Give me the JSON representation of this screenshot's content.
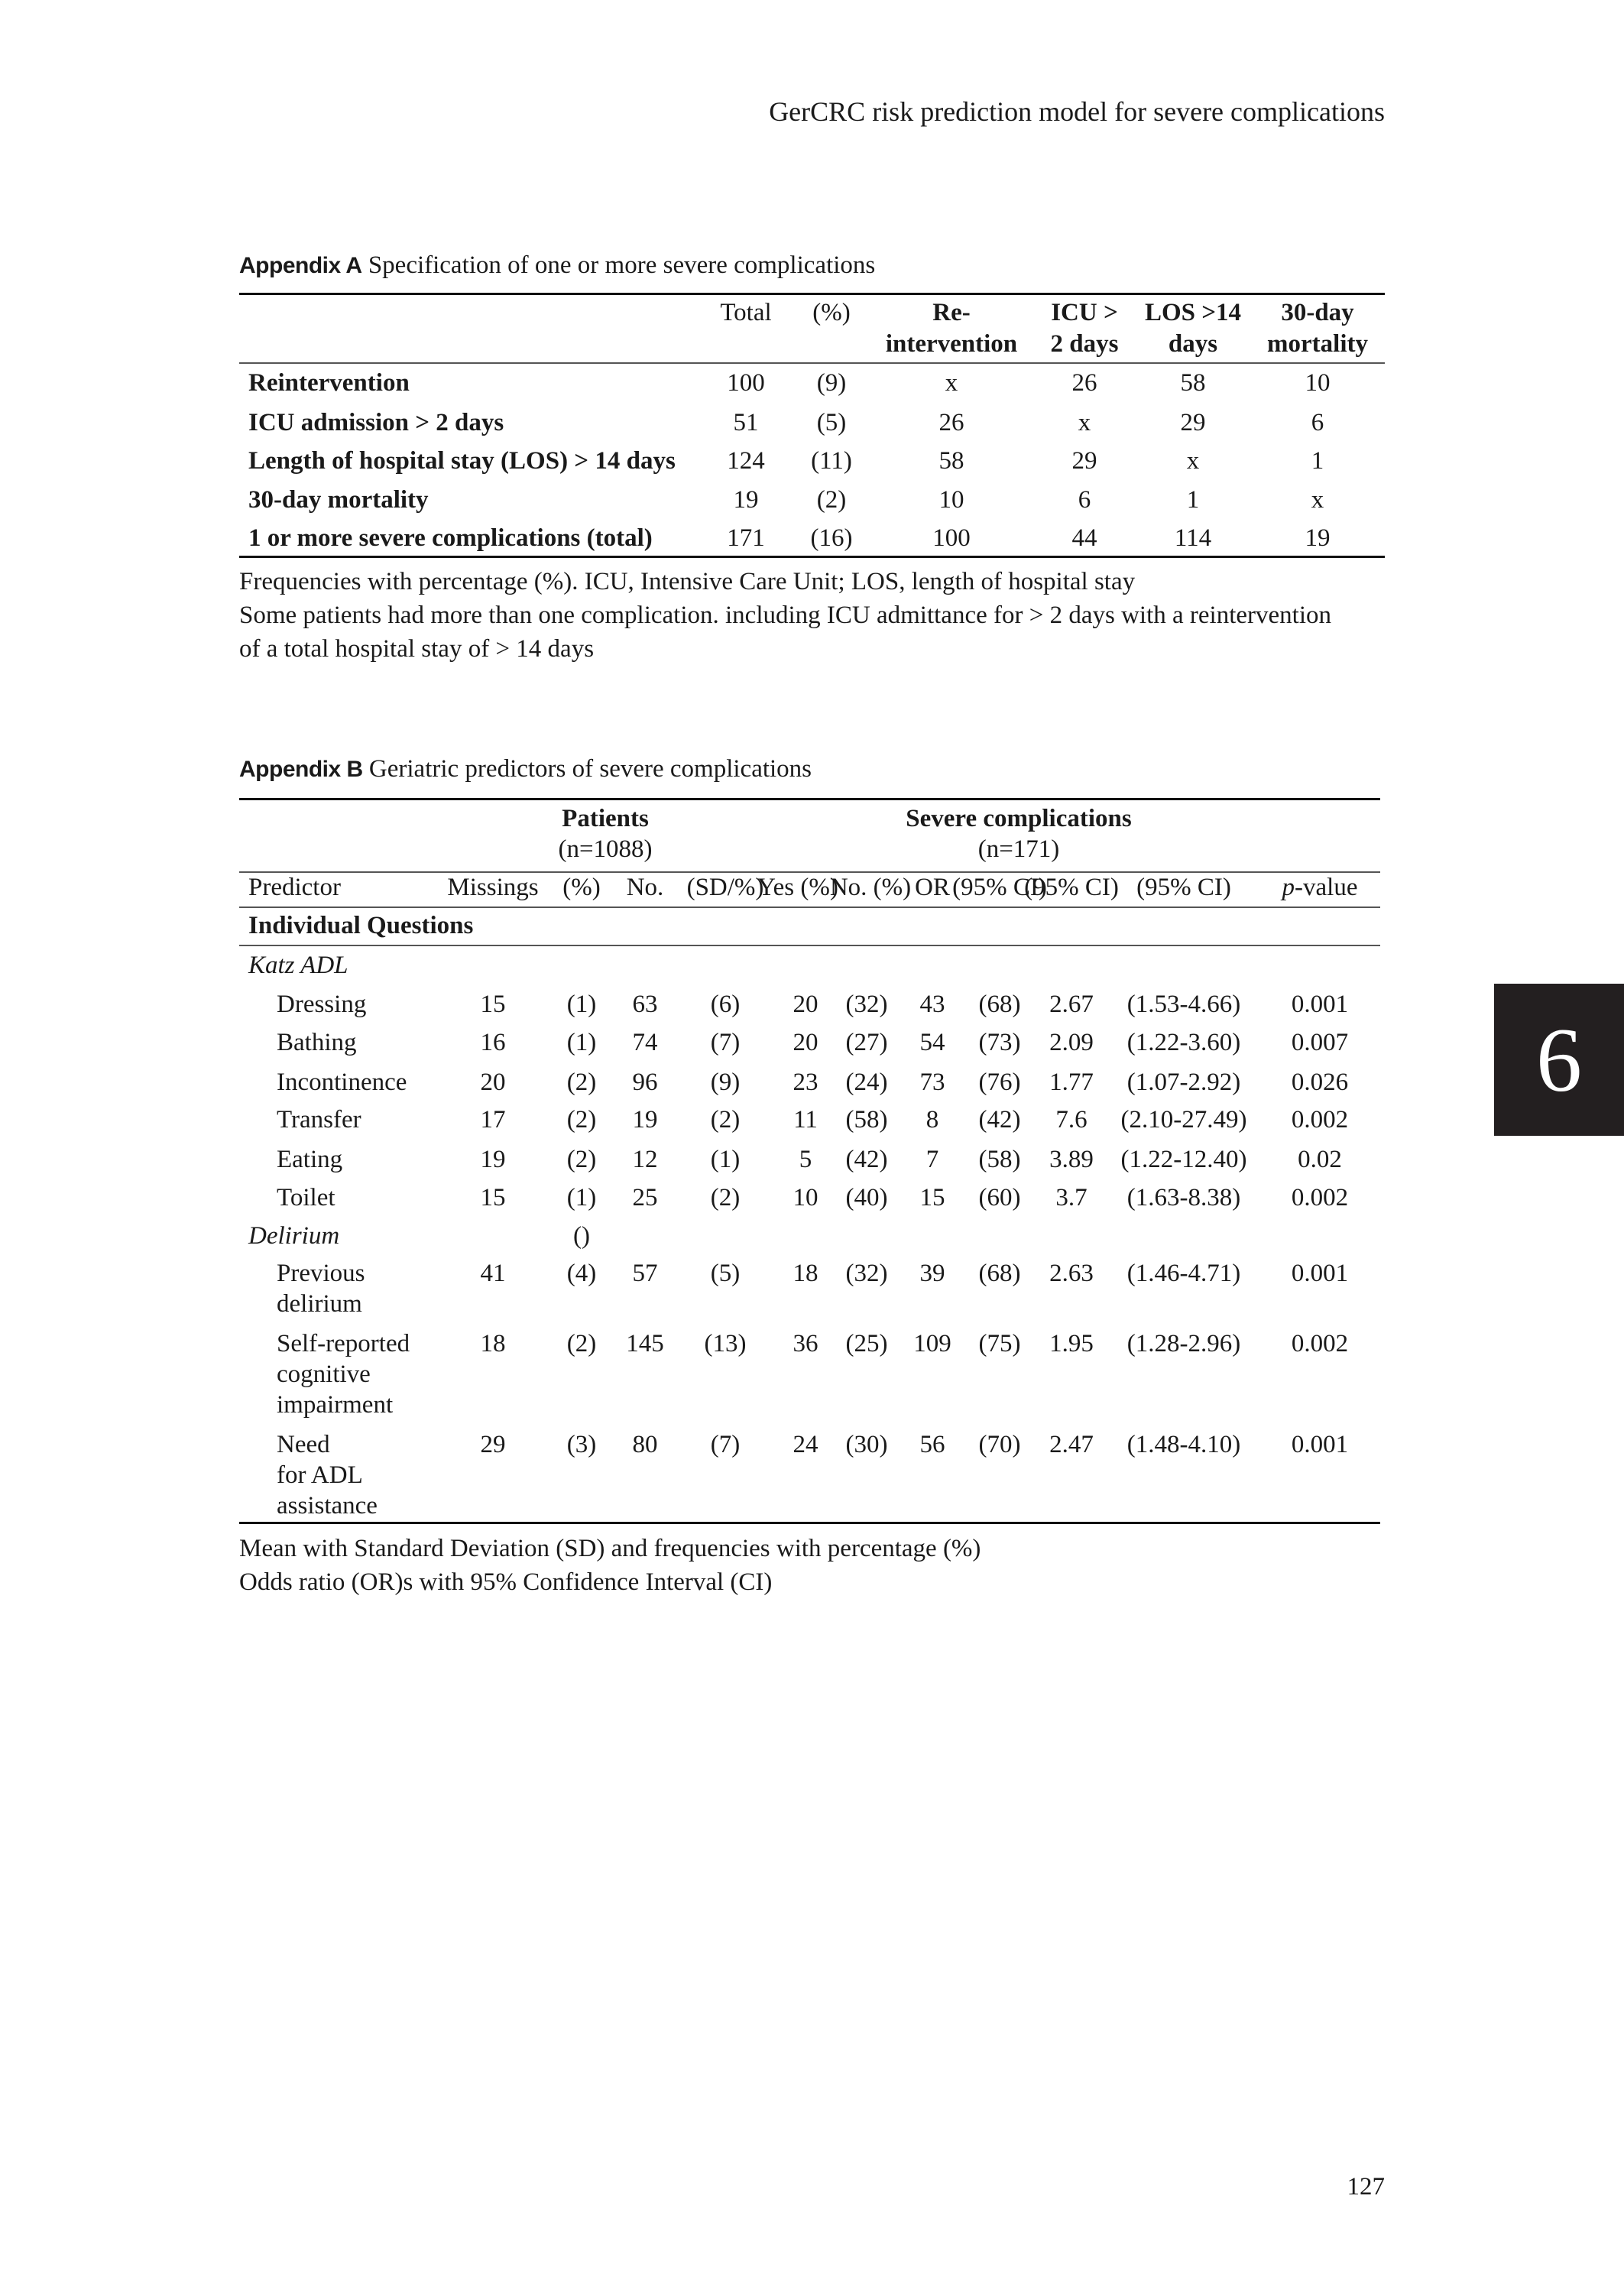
{
  "running_header": "GerCRC risk prediction model for severe complications",
  "appendix_a": {
    "label": "Appendix A",
    "title": "Specification of one or more severe complications",
    "headers": [
      [
        "Total"
      ],
      [
        "(%)"
      ],
      [
        "Re-",
        "intervention"
      ],
      [
        "ICU >",
        "2 days"
      ],
      [
        "LOS >14",
        "days"
      ],
      [
        "30-day",
        "mortality"
      ]
    ],
    "rows": [
      {
        "label": "Reintervention",
        "values": [
          "100",
          "(9)",
          "x",
          "26",
          "58",
          "10"
        ]
      },
      {
        "label": "ICU admission > 2 days",
        "values": [
          "51",
          "(5)",
          "26",
          "x",
          "29",
          "6"
        ]
      },
      {
        "label": "Length of hospital stay (LOS) > 14 days",
        "values": [
          "124",
          "(11)",
          "58",
          "29",
          "x",
          "1"
        ]
      },
      {
        "label": "30-day mortality",
        "values": [
          "19",
          "(2)",
          "10",
          "6",
          "1",
          "x"
        ]
      },
      {
        "label": "1 or more severe complications (total)",
        "values": [
          "171",
          "(16)",
          "100",
          "44",
          "114",
          "19"
        ]
      }
    ],
    "footnotes": [
      "Frequencies with percentage (%). ICU, Intensive Care Unit; LOS, length of hospital stay",
      " Some patients had more than one complication. including ICU admittance for > 2 days with a reintervention",
      "of a total hospital stay of > 14 days"
    ]
  },
  "appendix_b": {
    "label": "Appendix B",
    "title": "Geriatric predictors of severe complications",
    "group_headers": [
      {
        "title": "Patients",
        "sub": "(n=1088)"
      },
      {
        "title": "Severe complications",
        "sub": "(n=171)"
      }
    ],
    "columns": [
      "Predictor",
      "Missings",
      "(%)",
      "No.",
      "(SD/%)",
      "Yes (%)",
      "No. (%)",
      "OR",
      "(95% CI)",
      "p",
      "-value"
    ],
    "section": "Individual Questions",
    "groups": [
      {
        "name": "Katz ADL",
        "note": "",
        "rows": [
          {
            "label": [
              "Dressing"
            ],
            "values": [
              "15",
              "(1)",
              "63",
              "(6)",
              "20",
              "(32)",
              "43",
              "(68)",
              "2.67",
              "(1.53-4.66)",
              "0.001"
            ]
          },
          {
            "label": [
              "Bathing"
            ],
            "values": [
              "16",
              "(1)",
              "74",
              "(7)",
              "20",
              "(27)",
              "54",
              "(73)",
              "2.09",
              "(1.22-3.60)",
              "0.007"
            ]
          },
          {
            "label": [
              "Incontinence"
            ],
            "values": [
              "20",
              "(2)",
              "96",
              "(9)",
              "23",
              "(24)",
              "73",
              "(76)",
              "1.77",
              "(1.07-2.92)",
              "0.026"
            ]
          },
          {
            "label": [
              "Transfer"
            ],
            "values": [
              "17",
              "(2)",
              "19",
              "(2)",
              "11",
              "(58)",
              "8",
              "(42)",
              "7.6",
              "(2.10-27.49)",
              "0.002"
            ]
          },
          {
            "label": [
              "Eating"
            ],
            "values": [
              "19",
              "(2)",
              "12",
              "(1)",
              "5",
              "(42)",
              "7",
              "(58)",
              "3.89",
              "(1.22-12.40)",
              "0.02"
            ]
          },
          {
            "label": [
              "Toilet"
            ],
            "values": [
              "15",
              "(1)",
              "25",
              "(2)",
              "10",
              "(40)",
              "15",
              "(60)",
              "3.7",
              "(1.63-8.38)",
              "0.002"
            ]
          }
        ]
      },
      {
        "name": "Delirium",
        "note": "()",
        "rows": [
          {
            "label": [
              "Previous",
              "delirium"
            ],
            "values": [
              "41",
              "(4)",
              "57",
              "(5)",
              "18",
              "(32)",
              "39",
              "(68)",
              "2.63",
              "(1.46-4.71)",
              "0.001"
            ]
          },
          {
            "label": [
              "Self-reported",
              "cognitive",
              "impairment"
            ],
            "values": [
              "18",
              "(2)",
              "145",
              "(13)",
              "36",
              "(25)",
              "109",
              "(75)",
              "1.95",
              "(1.28-2.96)",
              "0.002"
            ]
          },
          {
            "label": [
              "Need",
              "for ADL",
              "assistance"
            ],
            "values": [
              "29",
              "(3)",
              "80",
              "(7)",
              "24",
              "(30)",
              "56",
              "(70)",
              "2.47",
              "(1.48-4.10)",
              "0.001"
            ]
          }
        ]
      }
    ],
    "footnotes": [
      "Mean with Standard Deviation (SD) and frequencies with percentage (%)",
      "Odds ratio (OR)s with 95% Confidence Interval (CI)"
    ]
  },
  "chapter_tab": "6",
  "page_number": "127"
}
